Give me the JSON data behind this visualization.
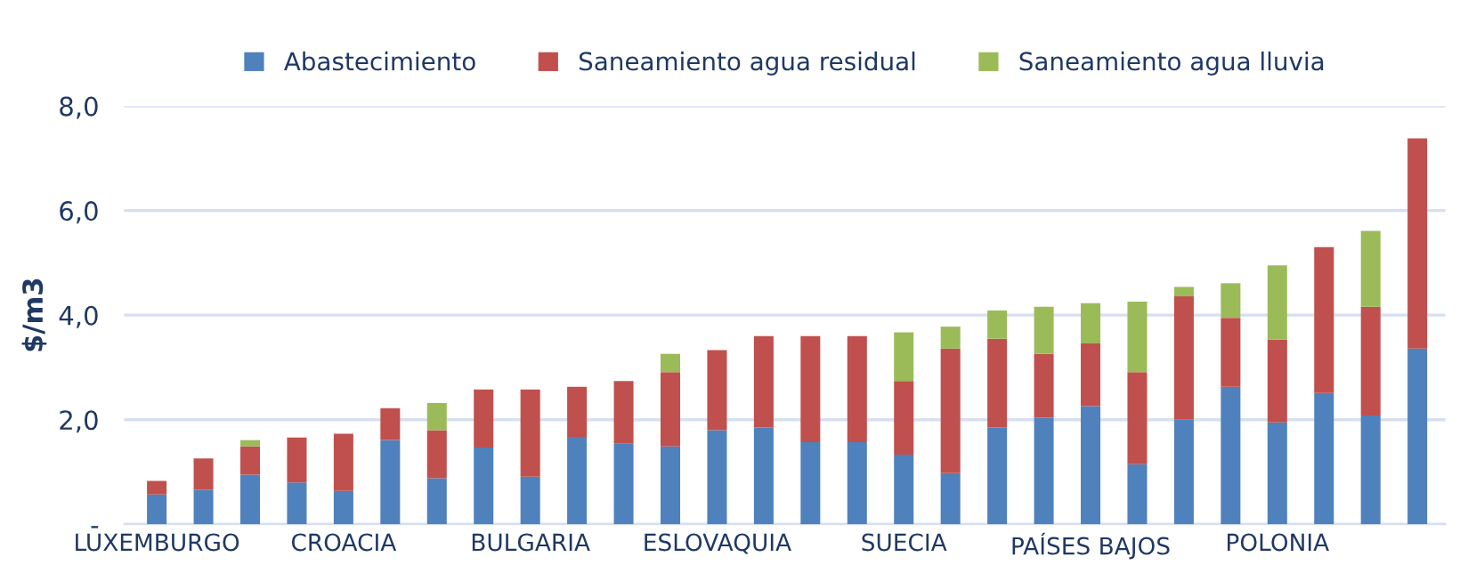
{
  "chart_data": {
    "type": "bar",
    "stacked": true,
    "ylabel": "$/m3",
    "categories": [
      "LUXEMBURGO",
      null,
      null,
      null,
      "CROACIA",
      null,
      null,
      null,
      "BULGARIA",
      null,
      null,
      null,
      "ESLOVAQUIA",
      null,
      null,
      null,
      "SUECIA",
      null,
      null,
      null,
      "PAÍSES BAJOS",
      null,
      null,
      null,
      "POLONIA",
      null,
      null,
      null
    ],
    "series": [
      {
        "name": "Abastecimiento",
        "color": "#4f81bd",
        "values": [
          0.57,
          0.66,
          0.95,
          0.8,
          0.64,
          1.61,
          0.88,
          1.47,
          0.91,
          1.67,
          1.54,
          1.49,
          1.8,
          1.85,
          1.57,
          1.57,
          1.33,
          0.98,
          1.85,
          2.04,
          2.26,
          1.15,
          2.01,
          2.63,
          1.95,
          2.51,
          2.08,
          3.36
        ]
      },
      {
        "name": "Saneamiento agua residual",
        "color": "#c0504d",
        "values": [
          0.26,
          0.6,
          0.54,
          0.86,
          1.09,
          0.61,
          0.92,
          1.11,
          1.67,
          0.96,
          1.2,
          1.42,
          1.53,
          1.75,
          2.03,
          2.03,
          1.41,
          2.38,
          1.7,
          1.22,
          1.2,
          1.76,
          2.35,
          1.32,
          1.58,
          2.79,
          2.08,
          4.02
        ]
      },
      {
        "name": "Saneamiento agua lluvia",
        "color": "#9bbb59",
        "values": [
          0,
          0,
          0.12,
          0,
          0,
          0,
          0.52,
          0,
          0,
          0,
          0,
          0.35,
          0,
          0,
          0,
          0,
          0.93,
          0.42,
          0.54,
          0.9,
          0.77,
          1.35,
          0.18,
          0.66,
          1.42,
          0,
          1.45,
          0
        ]
      }
    ],
    "ylim": [
      0,
      8
    ],
    "yticks": [
      {
        "value": 0,
        "label": "-"
      },
      {
        "value": 2,
        "label": "2,0"
      },
      {
        "value": 4,
        "label": "4,0"
      },
      {
        "value": 6,
        "label": "6,0"
      },
      {
        "value": 8,
        "label": "8,0"
      }
    ],
    "grid": "y",
    "legend": "top"
  }
}
